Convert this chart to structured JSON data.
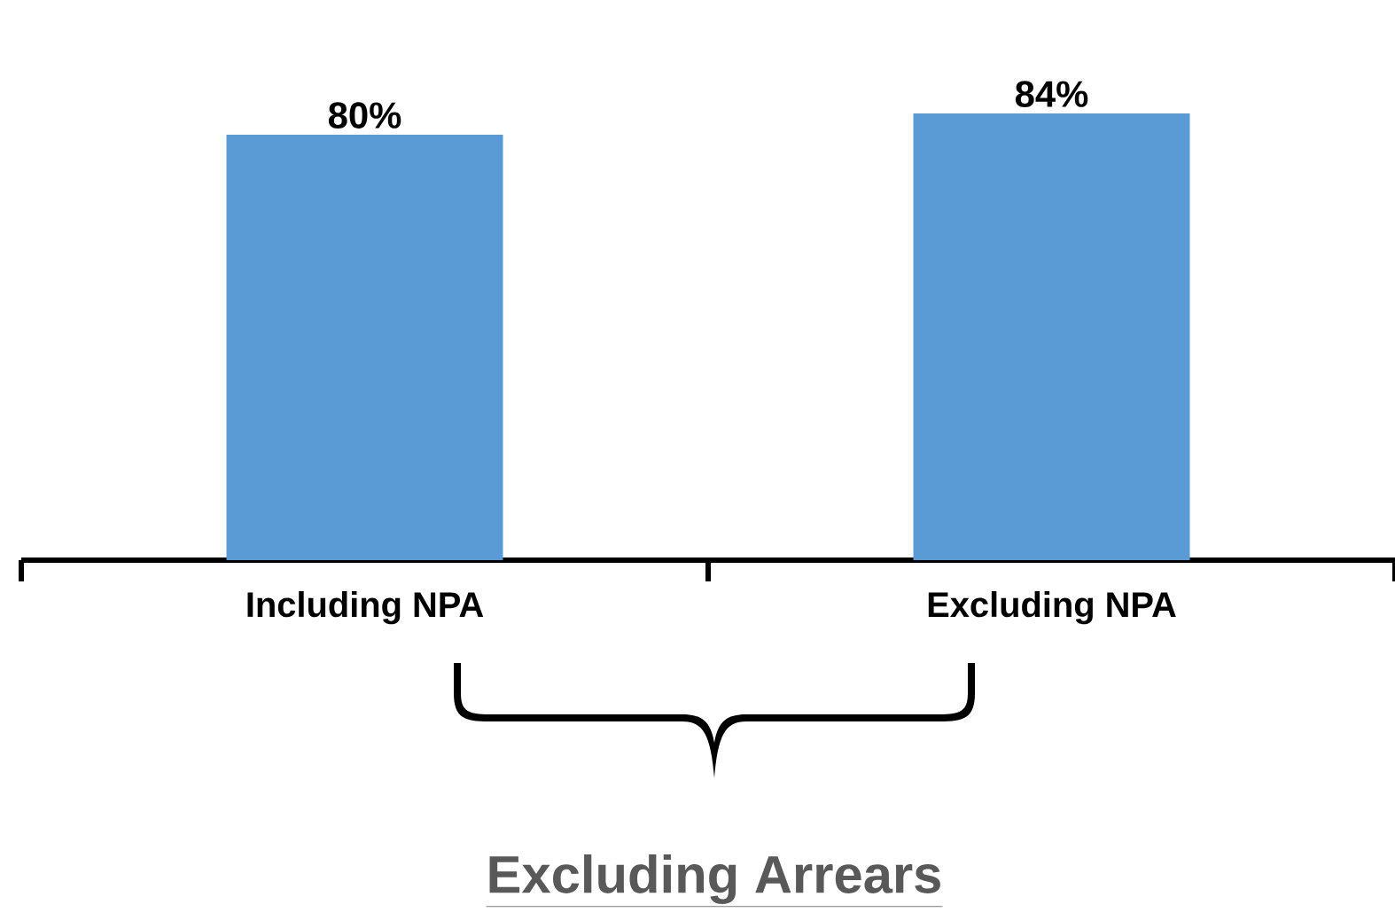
{
  "chart_data": {
    "type": "bar",
    "categories": [
      "Including NPA",
      "Excluding NPA"
    ],
    "values": [
      80,
      84
    ],
    "value_labels": [
      "80%",
      "84%"
    ],
    "color": "#5b9bd5",
    "annotations": [
      "Excluding Arrears"
    ]
  }
}
